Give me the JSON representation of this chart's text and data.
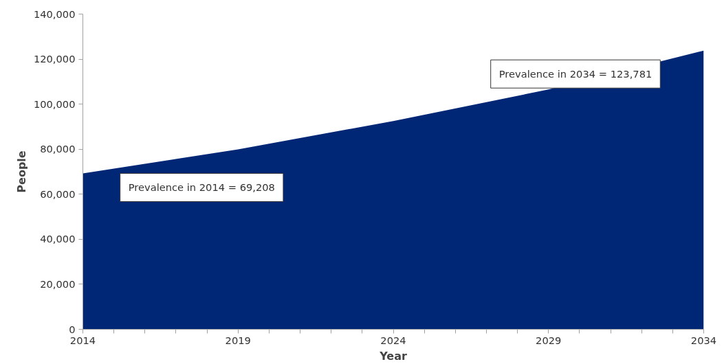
{
  "chart_data": {
    "type": "area",
    "xlabel": "Year",
    "ylabel": "People",
    "x": [
      2014,
      2019,
      2024,
      2029,
      2034
    ],
    "series": [
      {
        "color": "#002776",
        "values": [
          69208,
          79900,
          92500,
          106500,
          123781
        ]
      }
    ],
    "xlim": [
      2014,
      2034
    ],
    "xticks": [
      2014,
      {
        "value": 2015,
        "label": null
      },
      {
        "value": 2016,
        "label": null
      },
      {
        "value": 2017,
        "label": null
      },
      {
        "value": 2018,
        "label": null
      },
      2019,
      {
        "value": 2020,
        "label": null
      },
      {
        "value": 2021,
        "label": null
      },
      {
        "value": 2022,
        "label": null
      },
      {
        "value": 2023,
        "label": null
      },
      2024,
      {
        "value": 2025,
        "label": null
      },
      {
        "value": 2026,
        "label": null
      },
      {
        "value": 2027,
        "label": null
      },
      {
        "value": 2028,
        "label": null
      },
      2029,
      {
        "value": 2030,
        "label": null
      },
      {
        "value": 2031,
        "label": null
      },
      {
        "value": 2032,
        "label": null
      },
      {
        "value": 2033,
        "label": null
      },
      2034
    ],
    "ylim": [
      0,
      140000
    ],
    "yticks": [
      0,
      {
        "value": 20000,
        "label": "20,000"
      },
      {
        "value": 40000,
        "label": "40,000"
      },
      {
        "value": 60000,
        "label": "60,000"
      },
      {
        "value": 80000,
        "label": "80,000"
      },
      {
        "value": 100000,
        "label": "100,000"
      },
      {
        "value": 120000,
        "label": "120,000"
      },
      {
        "value": 140000,
        "label": "140,000"
      }
    ],
    "grid": false,
    "annotations": [
      "Prevalence in 2014 = 69,208",
      "Prevalence in 2034 = 123,781"
    ]
  }
}
